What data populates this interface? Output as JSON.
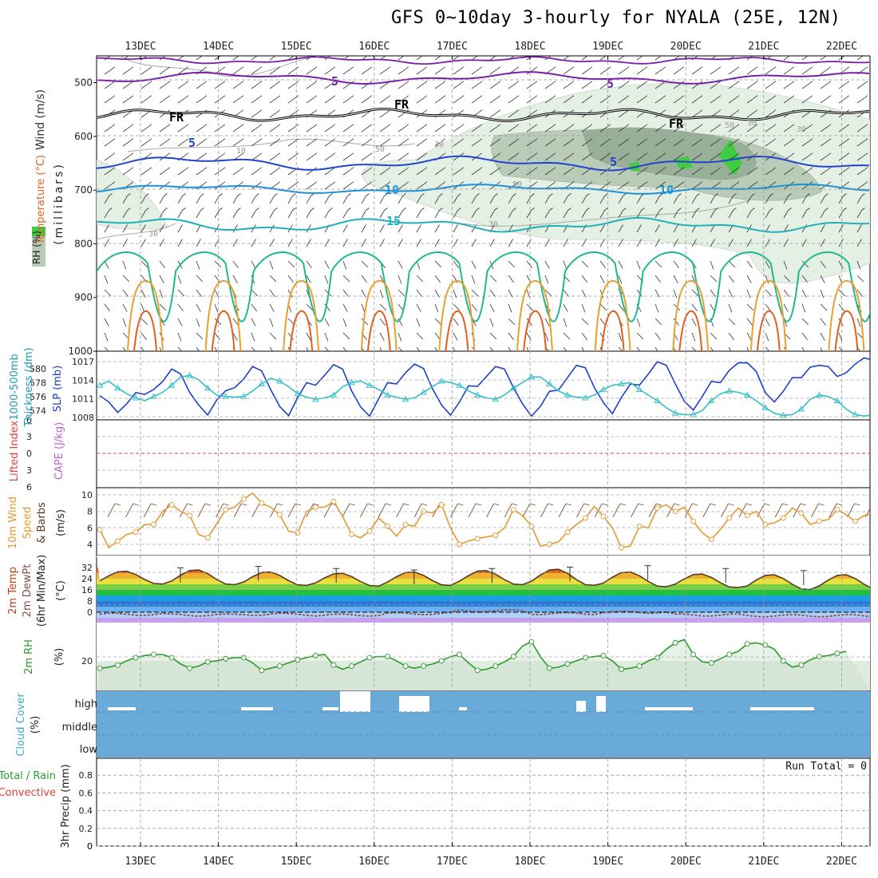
{
  "title": "GFS 0~10day 3-hourly for NYALA (25E, 12N)",
  "dates": [
    "13DEC",
    "14DEC",
    "15DEC",
    "16DEC",
    "17DEC",
    "18DEC",
    "19DEC",
    "20DEC",
    "21DEC",
    "22DEC"
  ],
  "colors": {
    "wind_purple": "#7a1fa8",
    "freeze_black": "#000000",
    "blue5": "#2244cc",
    "blue10": "#1e90d8",
    "cyan15": "#20b0b8",
    "green20": "#20b890",
    "orange": "#e8a030",
    "rh_fill_light": "#e4f0e4",
    "rh_fill_mid": "#b8ccb8",
    "rh_fill_dark": "#98b098",
    "rh_bright": "#40cc40",
    "slp_blue": "#1e40c8",
    "thick_cyan": "#30c0c8",
    "wind10": "#e89830",
    "barb": "#7a5030",
    "dew": "#8a4a4a",
    "temp_line": "#5a3a20",
    "rh2m": "#2c9a2c",
    "rh2m_fill": "#e6f2e6",
    "cloud": "#6aaad8",
    "lifted": "#e04040"
  },
  "labels": {
    "upper": {
      "wind": "Wind (m/s)",
      "temp": "Temperature (°C)",
      "rh": "RH (%)",
      "units": "(millibars)"
    },
    "thickness": {
      "a": "1000-500mb",
      "b": "Thickness (dm)",
      "c": "SLP (mb)"
    },
    "lifted": {
      "a": "Lifted Index",
      "b": "CAPE (J/kg)"
    },
    "wind10m": {
      "a": "10m Wind",
      "b": "Speed",
      "c": "& Barbs",
      "d": "(m/s)"
    },
    "temp2m": {
      "a": "2m Temp",
      "b": "2m DewPt",
      "c": "(6hr Min/Max)",
      "d": "(°C)"
    },
    "rh2m": {
      "a": "2m RH",
      "b": "(%)"
    },
    "cloud": {
      "a": "Cloud Cover",
      "b": "(%)",
      "high": "high",
      "middle": "middle",
      "low": "low"
    },
    "precip": {
      "a": "Total / Rain",
      "b": "Convective",
      "c": "3hr Precip (mm)",
      "run_total": "Run Total = 0"
    }
  },
  "chart_data": {
    "upper_air": {
      "type": "contour",
      "ylabel": "(millibars)",
      "ylim": [
        1000,
        450
      ],
      "yticks": [
        500,
        600,
        700,
        800,
        900,
        1000
      ],
      "contour_labels": [
        "5",
        "5",
        "FR",
        "FR",
        "FR",
        "5",
        "5",
        "10",
        "10",
        "15",
        "10",
        "30",
        "30",
        "30",
        "30",
        "30",
        "50",
        "50",
        "50"
      ],
      "isotherm_levels_mb": {
        "wind_5": 500,
        "freezing": 560,
        "t5": 650,
        "t10": 698,
        "t15": 765,
        "t20": 830
      },
      "rh_values": [
        30,
        50
      ]
    },
    "thickness_slp": {
      "type": "line",
      "thickness_ticks": [
        574,
        576,
        578,
        580
      ],
      "slp_ticks": [
        1008,
        1011,
        1014,
        1017
      ],
      "slp": [
        1011.5,
        1010.5,
        1008.8,
        1010.2,
        1012.0,
        1011.7,
        1012.5,
        1013.8,
        1015.8,
        1015.0,
        1012.0,
        1010.0,
        1008.4,
        1010.8,
        1012.3,
        1012.8,
        1014.2,
        1016.2,
        1015.5,
        1012.5,
        1009.8,
        1008.3,
        1011.2,
        1013.6,
        1013.2,
        1014.8,
        1016.5,
        1015.8,
        1012.3,
        1009.7,
        1008.2,
        1011.0,
        1013.6,
        1013.4,
        1015.2,
        1016.6,
        1015.9,
        1012.6,
        1010.0,
        1008.4,
        1010.5,
        1013.1,
        1013.0,
        1014.6,
        1016.2,
        1015.8,
        1012.8,
        1010.2,
        1008.2,
        1009.8,
        1012.2,
        1012.4,
        1014.4,
        1016.4,
        1016.0,
        1012.8,
        1010.4,
        1008.6,
        1011.2,
        1013.4,
        1013.2,
        1015.0,
        1017.0,
        1016.4,
        1013.4,
        1010.6,
        1009.2,
        1011.4,
        1013.8,
        1013.6,
        1015.6,
        1016.8,
        1016.8,
        1015.4,
        1012.0,
        1010.5,
        1012.2,
        1014.4,
        1014.4,
        1016.1,
        1016.4,
        1016.2,
        1014.6,
        1015.2,
        1016.6,
        1017.6,
        1017.2
      ],
      "thickness": [
        577.6,
        578.2,
        577.2,
        576.4,
        575.8,
        575.4,
        576.0,
        576.6,
        577.6,
        578.8,
        579.0,
        578.4,
        577.2,
        576.2,
        576.0,
        575.9,
        576.0,
        576.8,
        577.8,
        578.6,
        578.2,
        577.4,
        576.4,
        575.9,
        575.6,
        575.8,
        576.2,
        577.4,
        578.0,
        578.2,
        577.6,
        577.0,
        576.2,
        575.9,
        575.6,
        575.8,
        576.6,
        577.4,
        578.2,
        578.0,
        577.6,
        576.8,
        576.2,
        575.8,
        575.6,
        576.2,
        577.2,
        578.0,
        578.8,
        578.8,
        577.8,
        576.8,
        576.2,
        575.9,
        575.8,
        576.2,
        577.0,
        577.6,
        577.8,
        578.0,
        577.0,
        576.2,
        575.4,
        574.4,
        573.6,
        573.4,
        573.4,
        574.0,
        575.4,
        576.4,
        576.8,
        576.6,
        576.2,
        575.4,
        574.4,
        573.6,
        573.3,
        573.4,
        574.2,
        575.6,
        576.2,
        576.0,
        575.4,
        574.2,
        573.4,
        573.2,
        573.4
      ]
    },
    "lifted_cape": {
      "type": "line",
      "yticks": [
        -6,
        -3,
        0,
        3,
        6
      ],
      "lifted_index_value": 0
    },
    "wind10m": {
      "type": "line",
      "yticks": [
        4,
        6,
        8,
        10
      ],
      "values": [
        5.8,
        3.6,
        4.4,
        5.2,
        5.5,
        6.4,
        6.4,
        8.0,
        8.8,
        8.0,
        7.5,
        5.2,
        4.8,
        6.5,
        8.2,
        8.5,
        9.5,
        10.2,
        9.0,
        8.5,
        7.6,
        5.6,
        5.4,
        8.0,
        8.5,
        8.5,
        9.2,
        7.4,
        5.2,
        4.8,
        5.6,
        7.2,
        6.2,
        5.0,
        6.4,
        6.2,
        8.0,
        7.8,
        8.8,
        6.0,
        4.0,
        4.4,
        4.7,
        4.9,
        5.1,
        6.0,
        8.2,
        7.5,
        6.2,
        3.8,
        4.0,
        4.3,
        5.5,
        6.4,
        7.2,
        8.6,
        7.4,
        6.0,
        3.6,
        3.8,
        6.2,
        6.0,
        8.4,
        8.8,
        8.0,
        8.5,
        6.8,
        5.4,
        4.6,
        5.8,
        7.2,
        8.4,
        7.5,
        8.0,
        6.4,
        6.6,
        7.2,
        8.4,
        7.8,
        6.4,
        6.8,
        7.0,
        8.2,
        7.6,
        6.8,
        7.5,
        7.7
      ]
    },
    "temp2m": {
      "type": "area",
      "yticks": [
        0,
        8,
        16,
        24,
        32
      ],
      "day_max": [
        29.5,
        30.5,
        29.0,
        28.0,
        29.0,
        30.0,
        31.0,
        29.0,
        27.5,
        27.0
      ],
      "night_min": [
        20.0,
        19.5,
        19.0,
        18.5,
        19.0,
        19.5,
        19.0,
        18.0,
        17.5,
        16.0
      ],
      "dewpoint": [
        -1.5,
        -2.0,
        -1.5,
        -2.0,
        -1.0,
        1.0,
        -1.0,
        0.0,
        -2.0,
        -2.5
      ]
    },
    "rh2m": {
      "type": "line",
      "yticks": [
        20
      ],
      "values": [
        16.5,
        17.0,
        18.0,
        20.0,
        21.5,
        22.5,
        23.0,
        23.0,
        21.5,
        18.5,
        16.5,
        17.5,
        19.5,
        20.0,
        21.0,
        21.5,
        21.5,
        19.0,
        15.5,
        16.5,
        17.5,
        19.0,
        20.5,
        21.5,
        22.5,
        23.0,
        18.0,
        16.0,
        17.5,
        19.5,
        21.5,
        22.0,
        22.0,
        20.0,
        17.5,
        16.5,
        17.5,
        18.5,
        20.0,
        22.0,
        23.0,
        19.0,
        15.5,
        16.0,
        17.5,
        19.5,
        22.0,
        27.0,
        29.0,
        22.0,
        16.5,
        17.0,
        18.5,
        20.0,
        21.5,
        22.0,
        22.5,
        20.0,
        16.0,
        16.5,
        17.5,
        20.0,
        21.5,
        25.5,
        28.5,
        30.0,
        23.0,
        19.5,
        19.0,
        21.0,
        23.0,
        24.5,
        28.0,
        28.5,
        27.5,
        25.5,
        20.0,
        17.0,
        18.0,
        20.5,
        22.0,
        22.5,
        23.5,
        24.5
      ]
    },
    "cloud_cover": {
      "type": "bar",
      "levels": [
        "high",
        "middle",
        "low"
      ],
      "high_gaps": [
        "16DEC 00Z",
        "16DEC 21Z",
        "18DEC 18Z",
        "19DEC 00Z"
      ]
    },
    "precip3hr": {
      "type": "bar",
      "yticks": [
        0,
        0.2,
        0.4,
        0.6,
        0.8
      ],
      "total": 0,
      "rain": 0,
      "convective": 0
    }
  }
}
